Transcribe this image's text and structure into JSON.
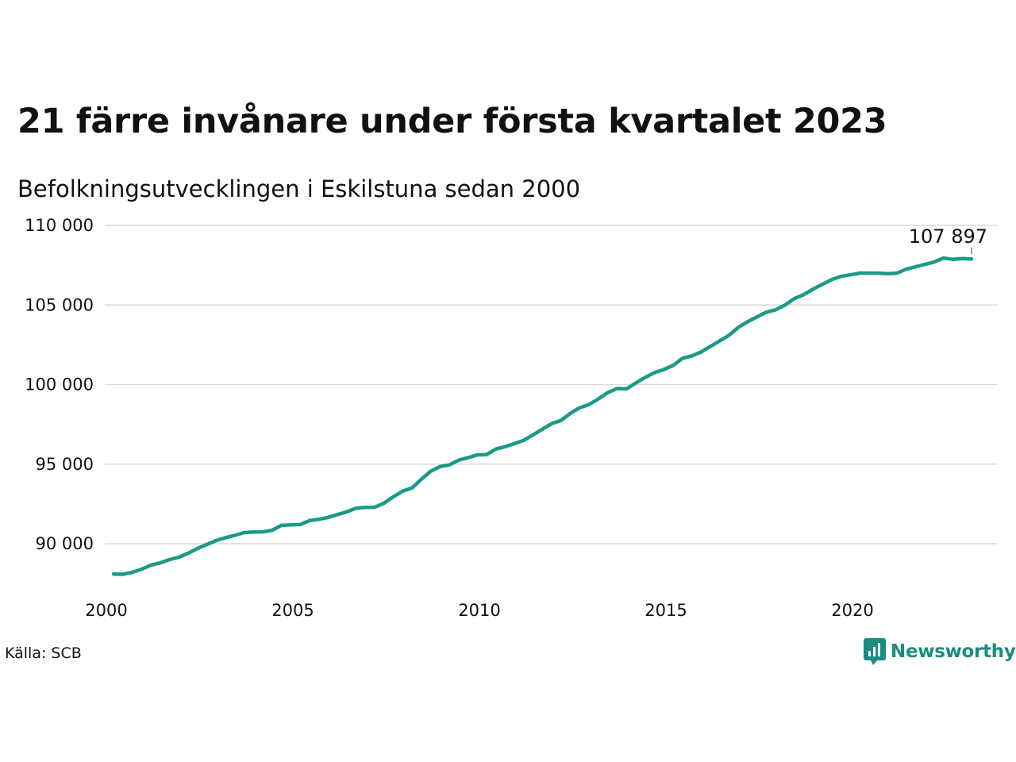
{
  "header": {
    "title": "21 färre invånare under första kvartalet 2023",
    "subtitle": "Befolkningsutvecklingen i Eskilstuna sedan 2000"
  },
  "footer": {
    "source": "Källa: SCB",
    "brand": "Newsworthy",
    "brand_color": "#1c8c80"
  },
  "chart_data": {
    "type": "line",
    "x_start": 2000,
    "x_step": 0.25,
    "xlim": [
      2000,
      2024
    ],
    "ylim": [
      88000,
      110000
    ],
    "x_ticks": [
      2000,
      2005,
      2010,
      2015,
      2020
    ],
    "x_tick_labels": [
      "2000",
      "2005",
      "2010",
      "2015",
      "2020"
    ],
    "y_ticks": [
      90000,
      95000,
      100000,
      105000,
      110000
    ],
    "y_tick_labels": [
      "90 000",
      "95 000",
      "100 000",
      "105 000",
      "110 000"
    ],
    "grid": true,
    "line_color": "#1a9a87",
    "end_label": "107 897",
    "series": [
      {
        "values": [
          88100,
          88080,
          88200,
          88400,
          88650,
          88800,
          89000,
          89150,
          89400,
          89700,
          89950,
          90200,
          90380,
          90530,
          90700,
          90740,
          90750,
          90850,
          91150,
          91180,
          91200,
          91450,
          91530,
          91650,
          91830,
          92000,
          92230,
          92280,
          92290,
          92550,
          92950,
          93300,
          93500,
          94050,
          94550,
          94850,
          94950,
          95250,
          95400,
          95580,
          95600,
          95950,
          96100,
          96300,
          96500,
          96850,
          97200,
          97550,
          97750,
          98200,
          98550,
          98750,
          99100,
          99500,
          99750,
          99730,
          100100,
          100450,
          100750,
          100950,
          101200,
          101650,
          101800,
          102050,
          102400,
          102750,
          103100,
          103600,
          103950,
          104250,
          104550,
          104700,
          105000,
          105400,
          105650,
          106000,
          106300,
          106600,
          106800,
          106900,
          107000,
          107000,
          107000,
          106970,
          107000,
          107250,
          107400,
          107550,
          107700,
          107950,
          107870,
          107918,
          107897
        ]
      }
    ]
  }
}
